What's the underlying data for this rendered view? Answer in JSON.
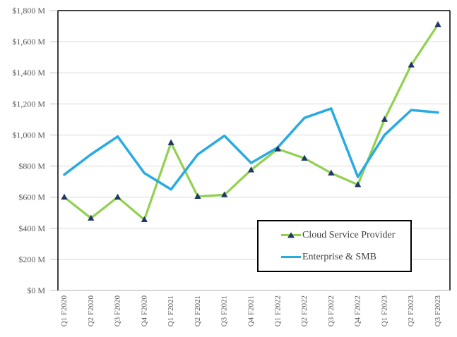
{
  "chart_data": {
    "type": "line",
    "title": "",
    "xlabel": "",
    "ylabel": "",
    "grid": true,
    "legend_position": "inside-bottom-right",
    "ylim": [
      0,
      1800
    ],
    "ytick_step": 200,
    "yticks": [
      {
        "value": 0,
        "label": "$0 M"
      },
      {
        "value": 200,
        "label": "$200 M"
      },
      {
        "value": 400,
        "label": "$400 M"
      },
      {
        "value": 600,
        "label": "$600 M"
      },
      {
        "value": 800,
        "label": "$800 M"
      },
      {
        "value": 1000,
        "label": "$1,000 M"
      },
      {
        "value": 1200,
        "label": "$1,200 M"
      },
      {
        "value": 1400,
        "label": "$1,400 M"
      },
      {
        "value": 1600,
        "label": "$1,600 M"
      },
      {
        "value": 1800,
        "label": "$1,800 M"
      }
    ],
    "categories": [
      "Q1 F2020",
      "Q2 F2020",
      "Q3 F2020",
      "Q4 F2020",
      "Q1 F2021",
      "Q2 F2021",
      "Q3 F2021",
      "Q4 F2021",
      "Q1 F2022",
      "Q2 F2022",
      "Q3 F2022",
      "Q4 F2022",
      "Q1 F2023",
      "Q2 F2023",
      "Q3 F2023"
    ],
    "series": [
      {
        "name": "Cloud Service Provider",
        "color": "#92D050",
        "line_width": 3.2,
        "marker": "triangle",
        "marker_color": "#1F3864",
        "values": [
          600,
          465,
          600,
          455,
          950,
          605,
          615,
          775,
          910,
          850,
          755,
          680,
          1100,
          1450,
          1710
        ]
      },
      {
        "name": "Enterprise & SMB",
        "color": "#29ABE2",
        "line_width": 3.5,
        "marker": "none",
        "marker_color": "",
        "values": [
          745,
          875,
          990,
          755,
          650,
          875,
          995,
          820,
          920,
          1110,
          1170,
          730,
          1000,
          1160,
          1145
        ]
      }
    ]
  },
  "style": {
    "background": "#FFFFFF",
    "gridline_color": "#D9D9D9",
    "axis_color": "#000000",
    "bottom_border_color": "#BFBFBF",
    "tick_color": "#BFBFBF",
    "label_color": "#595959",
    "legend_border_color": "#000000",
    "legend_text_color": "#404040"
  }
}
